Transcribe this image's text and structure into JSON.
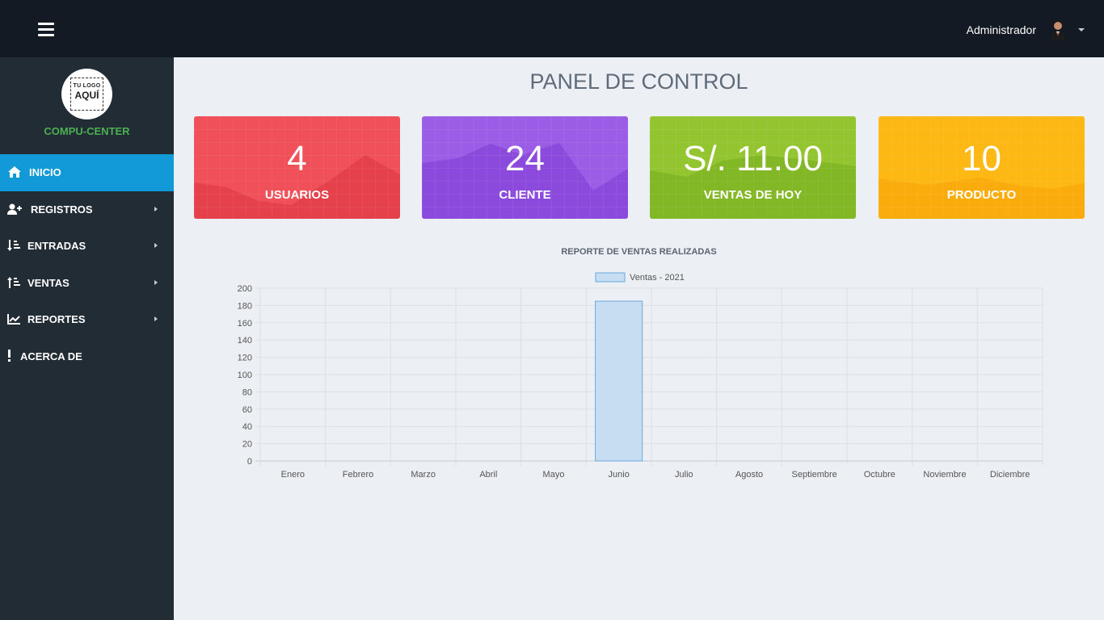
{
  "header": {
    "user_name": "Administrador",
    "icons": [
      "menu-icon",
      "user-avatar",
      "caret-down-icon"
    ]
  },
  "sidebar": {
    "logo_line1": "TU LOGO",
    "logo_line2": "AQUÍ",
    "brand": "COMPU-CENTER",
    "items": [
      {
        "label": "INICIO",
        "icon": "home-icon",
        "active": true,
        "has_submenu": false
      },
      {
        "label": "REGISTROS",
        "icon": "user-plus-icon",
        "active": false,
        "has_submenu": true
      },
      {
        "label": "ENTRADAS",
        "icon": "sort-down-icon",
        "active": false,
        "has_submenu": true
      },
      {
        "label": "VENTAS",
        "icon": "sort-up-icon",
        "active": false,
        "has_submenu": true
      },
      {
        "label": "REPORTES",
        "icon": "line-chart-icon",
        "active": false,
        "has_submenu": true
      },
      {
        "label": "ACERCA DE",
        "icon": "exclamation-icon",
        "active": false,
        "has_submenu": false
      }
    ]
  },
  "main": {
    "title": "PANEL DE CONTROL",
    "cards": [
      {
        "value": "4",
        "label": "USUARIOS",
        "color": "#f05058"
      },
      {
        "value": "24",
        "label": "CLIENTE",
        "color": "#9b5de5"
      },
      {
        "value": "S/. 11.00",
        "label": "VENTAS DE HOY",
        "color": "#93c530"
      },
      {
        "value": "10",
        "label": "PRODUCTO",
        "color": "#fdb813"
      }
    ]
  },
  "chart_data": {
    "type": "bar",
    "title": "REPORTE DE VENTAS REALIZADAS",
    "categories": [
      "Enero",
      "Febrero",
      "Marzo",
      "Abril",
      "Mayo",
      "Junio",
      "Julio",
      "Agosto",
      "Septiembre",
      "Octubre",
      "Noviembre",
      "Diciembre"
    ],
    "series": [
      {
        "name": "Ventas - 2021",
        "values": [
          0,
          0,
          0,
          0,
          0,
          185,
          0,
          0,
          0,
          0,
          0,
          0
        ],
        "color": "#c7ddf1",
        "border": "#6aa9dc"
      }
    ],
    "ylim": [
      0,
      200
    ],
    "yticks": [
      0,
      20,
      40,
      60,
      80,
      100,
      120,
      140,
      160,
      180,
      200
    ],
    "grid": true,
    "legend": "top"
  }
}
